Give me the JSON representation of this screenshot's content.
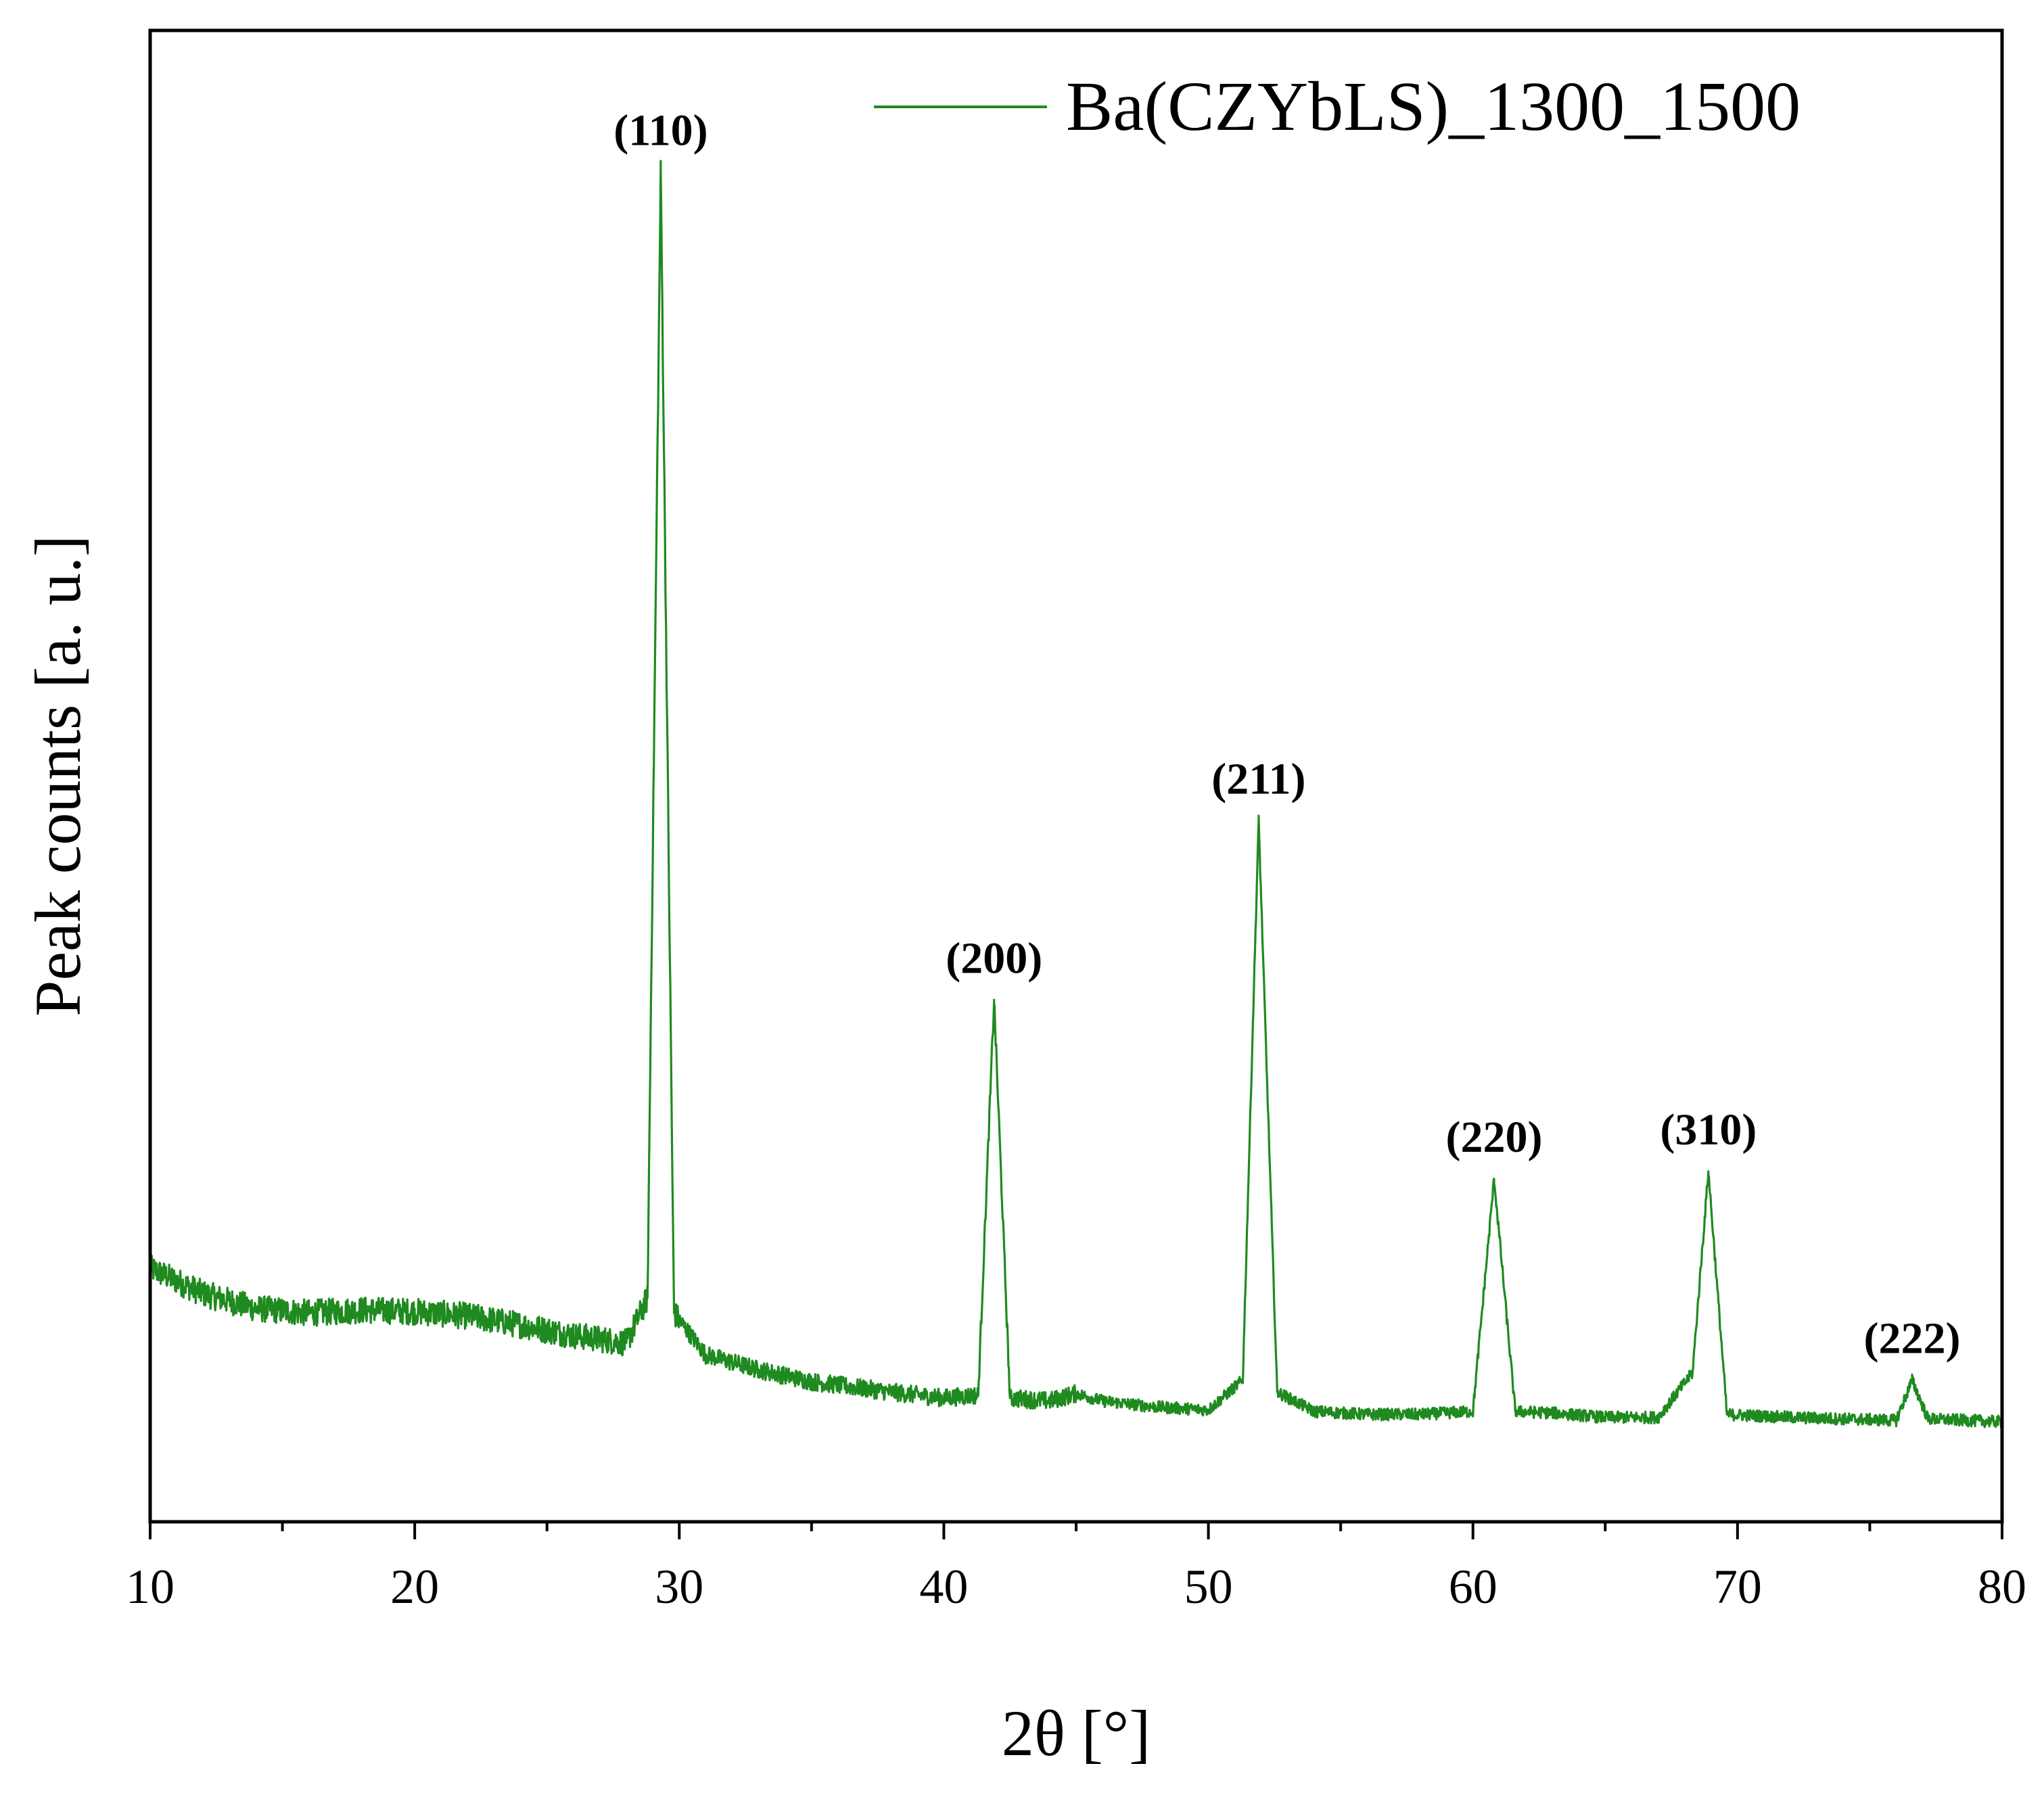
{
  "chart_data": {
    "type": "line",
    "title": "",
    "xlabel": "2θ [°]",
    "ylabel": "Peak counts [a. u.]",
    "xlim": [
      10,
      80
    ],
    "ylim": [
      0,
      100
    ],
    "x_ticks": [
      10,
      20,
      30,
      40,
      50,
      60,
      70,
      80
    ],
    "x_tick_labels": [
      "10",
      "20",
      "30",
      "40",
      "50",
      "60",
      "70",
      "80"
    ],
    "y_tick_labels_shown": false,
    "grid": false,
    "legend": "top-right",
    "line_color": "#1f8a1f",
    "series": [
      {
        "name": "Ba(CZYbLS)_1300_1500",
        "x": [
          10,
          12,
          14,
          16,
          18,
          20,
          22,
          24,
          26,
          28,
          28.8,
          29.3,
          29.8,
          31,
          33,
          35,
          38,
          40,
          41.3,
          41.9,
          42.5,
          44,
          45,
          46,
          48,
          50,
          51.3,
          51.9,
          52.6,
          54,
          56,
          58,
          60,
          60.8,
          61.6,
          63,
          65,
          67,
          68.3,
          68.9,
          69.6,
          72,
          74,
          76,
          76.6,
          77.2,
          80
        ],
        "y": [
          17,
          15.3,
          14.3,
          14,
          14.2,
          14.1,
          13.8,
          13.2,
          12.5,
          12,
          15,
          90.5,
          14,
          11.2,
          10.2,
          9.4,
          8.7,
          8.3,
          8.5,
          35,
          8.3,
          8.1,
          8.6,
          8.1,
          7.7,
          7.5,
          9.5,
          47,
          8.7,
          7.4,
          7.2,
          7.2,
          7.4,
          23,
          7.4,
          7.3,
          7.0,
          7.0,
          10,
          23.5,
          7.2,
          7.0,
          6.9,
          6.8,
          9.5,
          6.9,
          6.7
        ]
      }
    ],
    "annotations": [
      {
        "text": "(110)",
        "x": 29.3,
        "y": 90.5
      },
      {
        "text": "(200)",
        "x": 41.9,
        "y": 35
      },
      {
        "text": "(211)",
        "x": 51.9,
        "y": 47
      },
      {
        "text": "(220)",
        "x": 60.8,
        "y": 23
      },
      {
        "text": "(310)",
        "x": 68.9,
        "y": 23.5
      },
      {
        "text": "(222)",
        "x": 76.6,
        "y": 9.5
      }
    ]
  }
}
